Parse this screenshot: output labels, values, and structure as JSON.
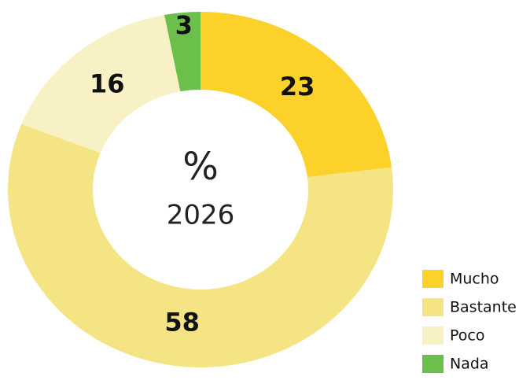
{
  "chart_data": {
    "type": "donut",
    "annotations": [
      "%",
      "2026"
    ],
    "categories": [
      "Mucho",
      "Bastante",
      "Poco",
      "Nada"
    ],
    "values": [
      23,
      58,
      16,
      3
    ],
    "colors": [
      "#fcd22a",
      "#f5e483",
      "#f8f1c6",
      "#6cbf4a"
    ],
    "legend": "bottom-right"
  }
}
